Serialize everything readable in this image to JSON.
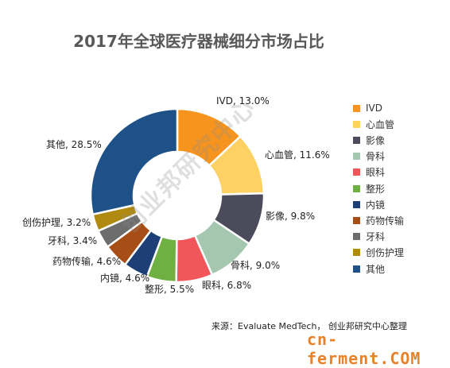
{
  "chart_data": {
    "type": "pie",
    "title": "2017年全球医疗器械细分市场占比",
    "categories": [
      "IVD",
      "心血管",
      "影像",
      "骨科",
      "眼科",
      "整形",
      "内镜",
      "药物传输",
      "牙科",
      "创伤护理",
      "其他"
    ],
    "values": [
      13.0,
      11.6,
      9.8,
      9.0,
      6.8,
      5.5,
      4.6,
      4.6,
      3.4,
      3.2,
      28.5
    ],
    "data_labels": [
      "IVD, 13.0%",
      "心血管, 11.6%",
      "影像, 9.8%",
      "骨科, 9.0%",
      "眼科, 6.8%",
      "整形, 5.5%",
      "内镜, 4.6%",
      "药物传输, 4.6%",
      "牙科, 3.4%",
      "创伤护理, 3.2%",
      "其他, 28.5%"
    ],
    "colors": [
      "#f7941d",
      "#fdd163",
      "#4b4b5c",
      "#a5c7b0",
      "#f1575a",
      "#6fb043",
      "#1e3f75",
      "#a64e16",
      "#6d6d6d",
      "#b08a10",
      "#1f5189"
    ],
    "donut": true,
    "legend_position": "right"
  },
  "source": "来源：Evaluate MedTech， 创业邦研究中心整理",
  "watermark": "创业邦研究中心",
  "site": {
    "main": "cn-ferment",
    "suffix": ".COM"
  }
}
